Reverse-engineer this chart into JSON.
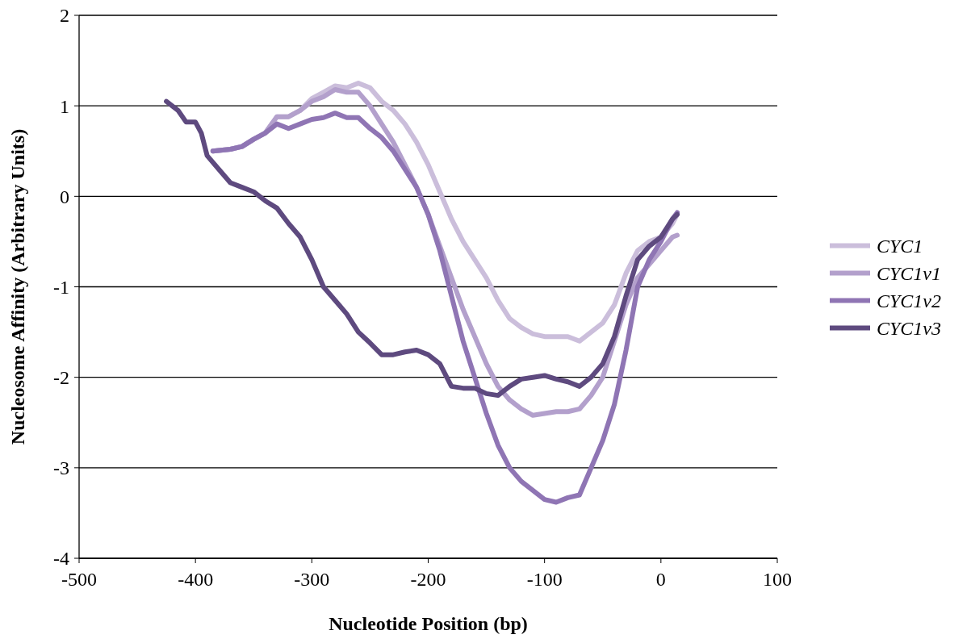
{
  "chart_data": {
    "type": "line",
    "xlabel": "Nucleotide Position (bp)",
    "ylabel": "Nucleosome Affinity (Arbitrary Units)",
    "xlim": [
      -500,
      100
    ],
    "xticks": [
      -500,
      -400,
      -300,
      -200,
      -100,
      0,
      100
    ],
    "ylim": [
      -4,
      2
    ],
    "yticks": [
      -4,
      -3,
      -2,
      -1,
      0,
      1,
      2
    ],
    "grid": "y",
    "legend": "right",
    "marker": "none",
    "line_style": "solid",
    "series": [
      {
        "name": "CYC1",
        "color": "#cbbedb",
        "x": [
          -385,
          -370,
          -360,
          -350,
          -340,
          -330,
          -320,
          -310,
          -300,
          -290,
          -280,
          -270,
          -260,
          -250,
          -240,
          -230,
          -220,
          -210,
          -200,
          -190,
          -180,
          -170,
          -160,
          -150,
          -140,
          -130,
          -120,
          -110,
          -100,
          -90,
          -80,
          -70,
          -60,
          -50,
          -40,
          -30,
          -20,
          -10,
          0,
          10,
          14
        ],
        "values": [
          0.5,
          0.52,
          0.55,
          0.63,
          0.7,
          0.88,
          0.88,
          0.95,
          1.08,
          1.15,
          1.22,
          1.2,
          1.25,
          1.2,
          1.05,
          0.95,
          0.8,
          0.6,
          0.35,
          0.05,
          -0.25,
          -0.5,
          -0.7,
          -0.9,
          -1.15,
          -1.35,
          -1.45,
          -1.52,
          -1.55,
          -1.55,
          -1.55,
          -1.6,
          -1.5,
          -1.4,
          -1.2,
          -0.85,
          -0.6,
          -0.5,
          -0.45,
          -0.3,
          -0.2
        ]
      },
      {
        "name": "CYC1v1",
        "color": "#b3a0cc",
        "x": [
          -385,
          -370,
          -360,
          -350,
          -340,
          -330,
          -320,
          -310,
          -300,
          -290,
          -280,
          -270,
          -260,
          -250,
          -240,
          -230,
          -220,
          -210,
          -200,
          -190,
          -180,
          -170,
          -160,
          -150,
          -140,
          -130,
          -120,
          -110,
          -100,
          -90,
          -80,
          -70,
          -60,
          -50,
          -40,
          -30,
          -20,
          -10,
          0,
          10,
          14
        ],
        "values": [
          0.5,
          0.52,
          0.55,
          0.63,
          0.7,
          0.88,
          0.88,
          0.95,
          1.05,
          1.1,
          1.18,
          1.15,
          1.15,
          1.0,
          0.8,
          0.6,
          0.35,
          0.1,
          -0.2,
          -0.55,
          -0.9,
          -1.25,
          -1.55,
          -1.85,
          -2.1,
          -2.25,
          -2.35,
          -2.42,
          -2.4,
          -2.38,
          -2.38,
          -2.35,
          -2.2,
          -2.0,
          -1.6,
          -1.2,
          -0.9,
          -0.75,
          -0.6,
          -0.45,
          -0.43
        ]
      },
      {
        "name": "CYC1v2",
        "color": "#8f75b4",
        "x": [
          -385,
          -370,
          -360,
          -350,
          -340,
          -330,
          -320,
          -310,
          -300,
          -290,
          -280,
          -270,
          -260,
          -250,
          -240,
          -230,
          -220,
          -210,
          -200,
          -190,
          -180,
          -170,
          -160,
          -150,
          -140,
          -130,
          -120,
          -110,
          -100,
          -90,
          -80,
          -70,
          -60,
          -50,
          -40,
          -30,
          -20,
          -10,
          0,
          10,
          14
        ],
        "values": [
          0.5,
          0.52,
          0.55,
          0.63,
          0.7,
          0.8,
          0.75,
          0.8,
          0.85,
          0.87,
          0.92,
          0.87,
          0.87,
          0.75,
          0.65,
          0.5,
          0.3,
          0.1,
          -0.2,
          -0.6,
          -1.1,
          -1.6,
          -2.0,
          -2.4,
          -2.75,
          -3.0,
          -3.15,
          -3.25,
          -3.35,
          -3.38,
          -3.33,
          -3.3,
          -3.0,
          -2.7,
          -2.3,
          -1.7,
          -1.0,
          -0.7,
          -0.5,
          -0.25,
          -0.18
        ]
      },
      {
        "name": "CYC1v3",
        "color": "#5e4a7f",
        "x": [
          -425,
          -415,
          -408,
          -400,
          -395,
          -390,
          -380,
          -370,
          -360,
          -350,
          -340,
          -330,
          -320,
          -310,
          -300,
          -290,
          -280,
          -270,
          -260,
          -250,
          -240,
          -230,
          -220,
          -210,
          -200,
          -190,
          -180,
          -170,
          -160,
          -150,
          -140,
          -130,
          -120,
          -110,
          -100,
          -90,
          -80,
          -70,
          -60,
          -50,
          -40,
          -30,
          -20,
          -10,
          0,
          10,
          14
        ],
        "values": [
          1.05,
          0.95,
          0.82,
          0.82,
          0.7,
          0.45,
          0.3,
          0.15,
          0.1,
          0.05,
          -0.05,
          -0.13,
          -0.3,
          -0.45,
          -0.7,
          -1.0,
          -1.15,
          -1.3,
          -1.5,
          -1.62,
          -1.75,
          -1.75,
          -1.72,
          -1.7,
          -1.75,
          -1.85,
          -2.1,
          -2.12,
          -2.12,
          -2.18,
          -2.2,
          -2.1,
          -2.02,
          -2.0,
          -1.98,
          -2.02,
          -2.05,
          -2.1,
          -2.0,
          -1.85,
          -1.55,
          -1.1,
          -0.7,
          -0.55,
          -0.45,
          -0.25,
          -0.2
        ]
      }
    ]
  }
}
